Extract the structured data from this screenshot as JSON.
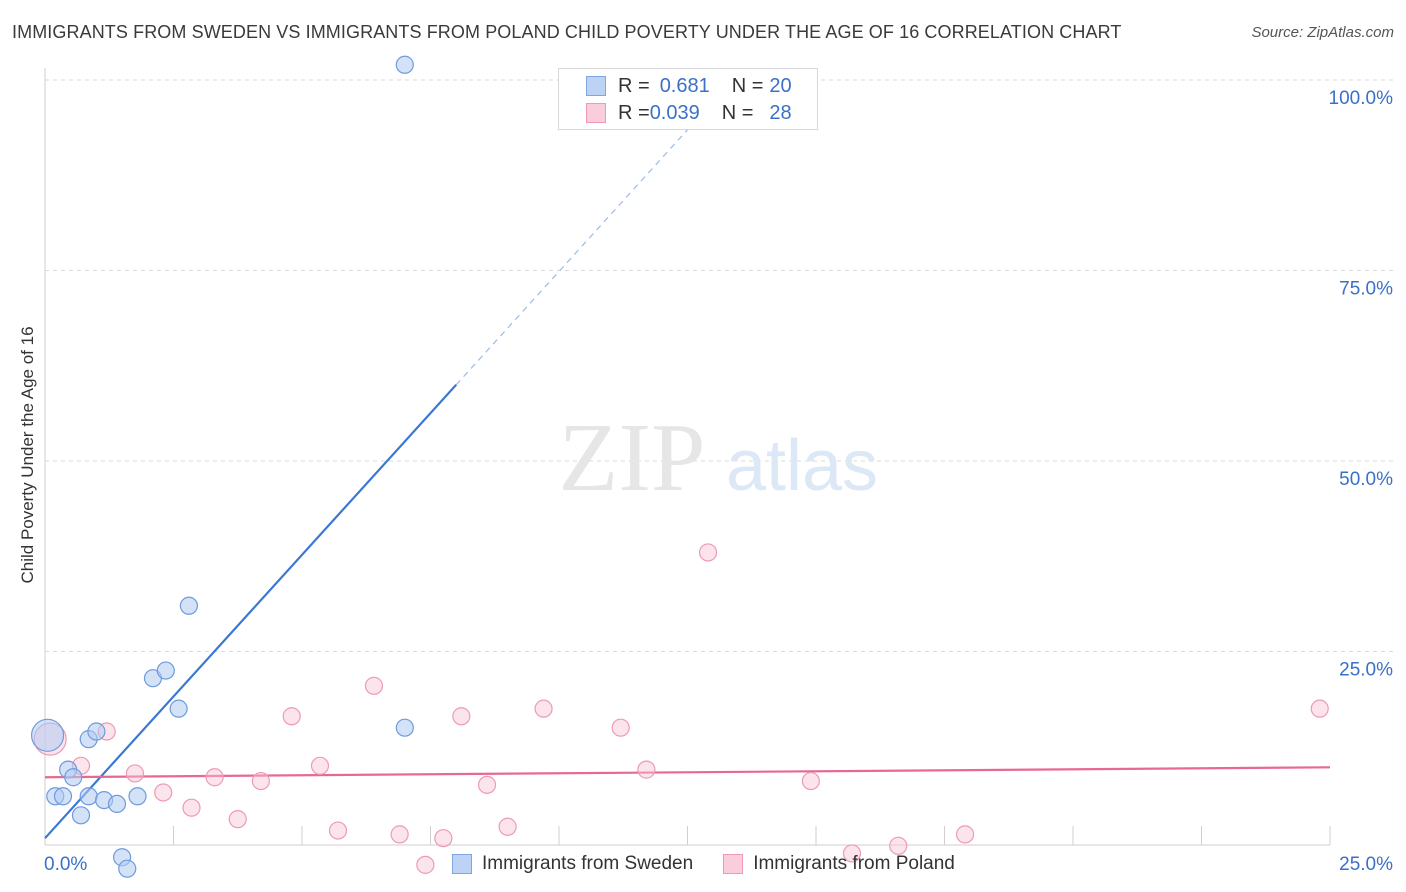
{
  "header": {
    "title": "IMMIGRANTS FROM SWEDEN VS IMMIGRANTS FROM POLAND CHILD POVERTY UNDER THE AGE OF 16 CORRELATION CHART",
    "source": "Source: ZipAtlas.com"
  },
  "watermark": {
    "zip": "ZIP",
    "atlas": "atlas"
  },
  "legend": {
    "rows": [
      {
        "r_label": "R = ",
        "r_value": "0.681",
        "n_label": "N = ",
        "n_value": "20"
      },
      {
        "r_label": "R = ",
        "r_value": "0.039",
        "n_label": "N = ",
        "n_value": "28"
      }
    ]
  },
  "chart_data": {
    "type": "scatter",
    "title": "IMMIGRANTS FROM SWEDEN VS IMMIGRANTS FROM POLAND CHILD POVERTY UNDER THE AGE OF 16 CORRELATION CHART",
    "xlabel": "",
    "ylabel": "Child Poverty Under the Age of 16",
    "xlim": [
      0,
      25
    ],
    "ylim": [
      0,
      100
    ],
    "x_tick_labels": [
      "0.0%",
      "25.0%"
    ],
    "y_tick_labels": [
      "25.0%",
      "50.0%",
      "75.0%",
      "100.0%"
    ],
    "y_ticks": [
      25,
      50,
      75,
      100
    ],
    "colors": {
      "sweden": "#3a78d4",
      "poland": "#e8698f",
      "tick_text": "#3a70c7"
    },
    "series": [
      {
        "name": "Immigrants from Sweden",
        "r": 0.681,
        "n": 20,
        "points": [
          {
            "x": 0.05,
            "y": 14.0,
            "size": "large"
          },
          {
            "x": 0.2,
            "y": 6.0
          },
          {
            "x": 0.35,
            "y": 6.0
          },
          {
            "x": 0.45,
            "y": 9.5
          },
          {
            "x": 0.55,
            "y": 8.5
          },
          {
            "x": 0.7,
            "y": 3.5
          },
          {
            "x": 0.85,
            "y": 13.5
          },
          {
            "x": 0.85,
            "y": 6.0
          },
          {
            "x": 1.0,
            "y": 14.5
          },
          {
            "x": 1.15,
            "y": 5.5
          },
          {
            "x": 1.4,
            "y": 5.0
          },
          {
            "x": 1.5,
            "y": -2.0
          },
          {
            "x": 1.6,
            "y": -3.5
          },
          {
            "x": 1.8,
            "y": 6.0
          },
          {
            "x": 2.1,
            "y": 21.5
          },
          {
            "x": 2.35,
            "y": 22.5
          },
          {
            "x": 2.6,
            "y": 17.5
          },
          {
            "x": 2.8,
            "y": 31.0
          },
          {
            "x": 7.0,
            "y": 15.0
          },
          {
            "x": 7.0,
            "y": 102.0
          }
        ],
        "trend": {
          "x0": 0.0,
          "y0": 0.5,
          "x1": 8.0,
          "y1": 60.0,
          "dash_to_x": 13.0
        }
      },
      {
        "name": "Immigrants from Poland",
        "r": 0.039,
        "n": 28,
        "points": [
          {
            "x": 0.1,
            "y": 13.5,
            "size": "large"
          },
          {
            "x": 0.7,
            "y": 10.0
          },
          {
            "x": 1.2,
            "y": 14.5
          },
          {
            "x": 1.75,
            "y": 9.0
          },
          {
            "x": 2.3,
            "y": 6.5
          },
          {
            "x": 2.85,
            "y": 4.5
          },
          {
            "x": 3.3,
            "y": 8.5
          },
          {
            "x": 3.75,
            "y": 3.0
          },
          {
            "x": 4.2,
            "y": 8.0
          },
          {
            "x": 4.8,
            "y": 16.5
          },
          {
            "x": 5.35,
            "y": 10.0
          },
          {
            "x": 5.7,
            "y": 1.5
          },
          {
            "x": 6.4,
            "y": 20.5
          },
          {
            "x": 6.9,
            "y": 1.0
          },
          {
            "x": 7.4,
            "y": -3.0
          },
          {
            "x": 7.75,
            "y": 0.5
          },
          {
            "x": 8.1,
            "y": 16.5
          },
          {
            "x": 8.6,
            "y": 7.5
          },
          {
            "x": 9.0,
            "y": 2.0
          },
          {
            "x": 9.7,
            "y": 17.5
          },
          {
            "x": 11.2,
            "y": 15.0
          },
          {
            "x": 11.7,
            "y": 9.5
          },
          {
            "x": 12.9,
            "y": 38.0
          },
          {
            "x": 14.9,
            "y": 8.0
          },
          {
            "x": 15.7,
            "y": -1.5
          },
          {
            "x": 16.6,
            "y": -0.5
          },
          {
            "x": 17.9,
            "y": 1.0
          },
          {
            "x": 24.8,
            "y": 17.5
          }
        ],
        "trend": {
          "x0": 0.0,
          "y0": 8.5,
          "x1": 25.0,
          "y1": 9.8
        }
      }
    ]
  }
}
